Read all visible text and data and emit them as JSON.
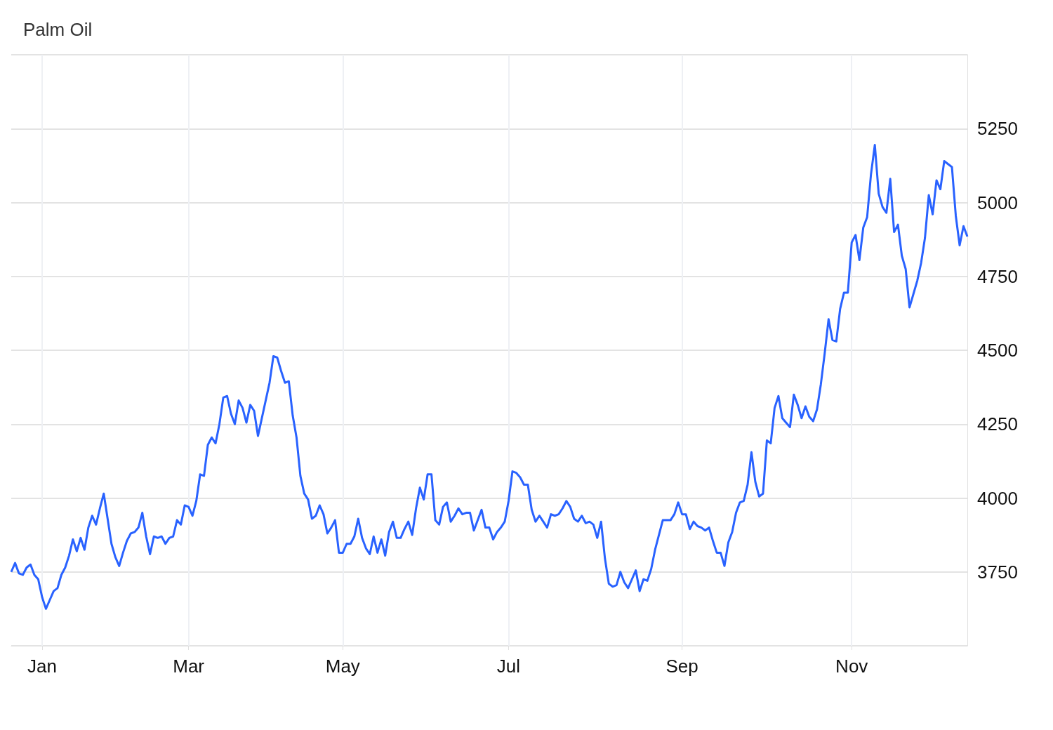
{
  "chart_data": {
    "type": "line",
    "title": "Palm Oil",
    "categories": [
      null,
      null,
      null,
      null,
      null,
      null,
      null,
      null,
      "Jan",
      null,
      null,
      null,
      null,
      null,
      null,
      null,
      null,
      null,
      null,
      null,
      null,
      null,
      null,
      null,
      null,
      null,
      null,
      null,
      null,
      null,
      null,
      null,
      null,
      null,
      null,
      null,
      null,
      null,
      null,
      null,
      null,
      null,
      null,
      null,
      null,
      null,
      "Mar",
      null,
      null,
      null,
      null,
      null,
      null,
      null,
      null,
      null,
      null,
      null,
      null,
      null,
      null,
      null,
      null,
      null,
      null,
      null,
      null,
      null,
      null,
      null,
      null,
      null,
      null,
      null,
      null,
      null,
      null,
      null,
      null,
      null,
      null,
      null,
      null,
      null,
      null,
      null,
      "May",
      null,
      null,
      null,
      null,
      null,
      null,
      null,
      null,
      null,
      null,
      null,
      null,
      null,
      null,
      null,
      null,
      null,
      null,
      null,
      null,
      null,
      null,
      null,
      null,
      null,
      null,
      null,
      null,
      null,
      null,
      null,
      null,
      null,
      null,
      null,
      null,
      null,
      null,
      null,
      null,
      null,
      null,
      "Jul",
      null,
      null,
      null,
      null,
      null,
      null,
      null,
      null,
      null,
      null,
      null,
      null,
      null,
      null,
      null,
      null,
      null,
      null,
      null,
      null,
      null,
      null,
      null,
      null,
      null,
      null,
      null,
      null,
      null,
      null,
      null,
      null,
      null,
      null,
      null,
      null,
      null,
      null,
      null,
      null,
      null,
      null,
      null,
      null,
      "Sep",
      null,
      null,
      null,
      null,
      null,
      null,
      null,
      null,
      null,
      null,
      null,
      null,
      null,
      null,
      null,
      null,
      null,
      null,
      null,
      null,
      null,
      null,
      null,
      null,
      null,
      null,
      null,
      null,
      null,
      null,
      null,
      null,
      null,
      null,
      null,
      null,
      null,
      null,
      null,
      null,
      null,
      null,
      null,
      "Nov",
      null,
      null,
      null,
      null,
      null,
      null,
      null,
      null,
      null,
      null,
      null,
      null,
      null,
      null,
      null,
      null,
      null,
      null,
      null,
      null,
      null,
      null,
      null,
      null,
      null,
      null,
      null,
      null,
      null,
      null
    ],
    "series": [
      {
        "color": "#2962ff",
        "values": [
          3750,
          3780,
          3745,
          3740,
          3765,
          3775,
          3740,
          3725,
          3665,
          3625,
          3655,
          3685,
          3695,
          3740,
          3765,
          3805,
          3860,
          3820,
          3865,
          3825,
          3900,
          3940,
          3910,
          3965,
          4015,
          3930,
          3845,
          3800,
          3770,
          3815,
          3855,
          3880,
          3885,
          3900,
          3950,
          3870,
          3810,
          3870,
          3865,
          3870,
          3845,
          3865,
          3870,
          3925,
          3910,
          3975,
          3970,
          3940,
          3990,
          4080,
          4075,
          4180,
          4205,
          4185,
          4250,
          4340,
          4345,
          4285,
          4250,
          4330,
          4305,
          4255,
          4315,
          4295,
          4210,
          4270,
          4330,
          4390,
          4480,
          4475,
          4430,
          4390,
          4395,
          4280,
          4205,
          4075,
          4015,
          3995,
          3930,
          3940,
          3975,
          3945,
          3880,
          3900,
          3925,
          3815,
          3815,
          3845,
          3845,
          3870,
          3930,
          3865,
          3830,
          3810,
          3870,
          3815,
          3860,
          3805,
          3885,
          3920,
          3865,
          3865,
          3895,
          3920,
          3875,
          3965,
          4035,
          3995,
          4080,
          4080,
          3925,
          3910,
          3970,
          3985,
          3920,
          3940,
          3965,
          3945,
          3950,
          3950,
          3890,
          3925,
          3960,
          3900,
          3900,
          3860,
          3885,
          3900,
          3920,
          3990,
          4090,
          4085,
          4070,
          4045,
          4045,
          3960,
          3920,
          3940,
          3920,
          3900,
          3945,
          3940,
          3945,
          3965,
          3990,
          3970,
          3930,
          3920,
          3940,
          3915,
          3920,
          3910,
          3865,
          3920,
          3795,
          3710,
          3700,
          3705,
          3750,
          3715,
          3695,
          3725,
          3755,
          3685,
          3725,
          3720,
          3760,
          3825,
          3875,
          3925,
          3925,
          3925,
          3945,
          3985,
          3945,
          3945,
          3895,
          3920,
          3905,
          3900,
          3890,
          3900,
          3855,
          3815,
          3815,
          3770,
          3850,
          3885,
          3950,
          3985,
          3990,
          4045,
          4155,
          4055,
          4005,
          4015,
          4195,
          4185,
          4305,
          4345,
          4270,
          4255,
          4240,
          4350,
          4315,
          4270,
          4310,
          4275,
          4260,
          4300,
          4385,
          4490,
          4605,
          4535,
          4530,
          4640,
          4695,
          4695,
          4865,
          4890,
          4805,
          4915,
          4950,
          5095,
          5195,
          5030,
          4985,
          4965,
          5080,
          4900,
          4925,
          4820,
          4775,
          4645,
          4690,
          4735,
          4795,
          4880,
          5025,
          4960,
          5075,
          5045,
          5140,
          5130,
          5120,
          4955,
          4855,
          4920,
          4885
        ]
      }
    ],
    "ylim": [
      3500,
      5500
    ],
    "yticks": [
      {
        "value": 3500,
        "label": null
      },
      3750,
      4000,
      4250,
      4500,
      4750,
      5000,
      5250,
      {
        "value": 5500,
        "label": null
      }
    ],
    "grid": true
  }
}
